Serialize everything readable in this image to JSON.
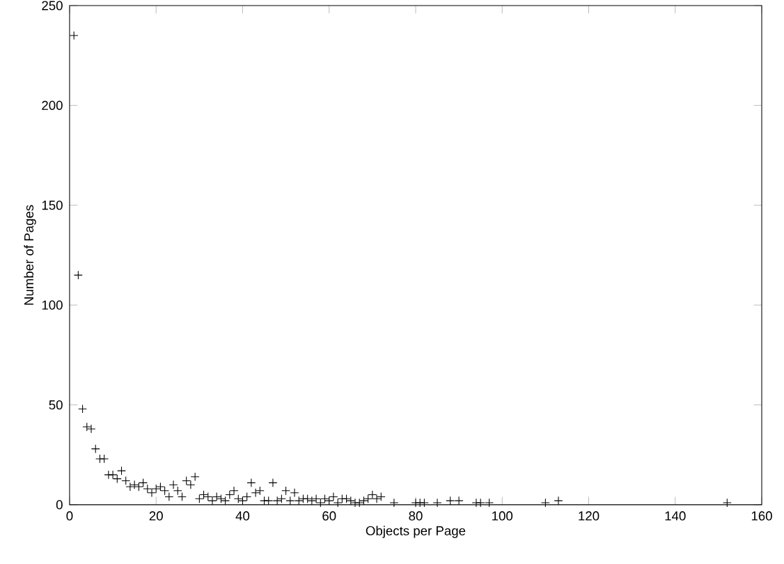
{
  "chart_data": {
    "type": "scatter",
    "xlabel": "Objects per Page",
    "ylabel": "Number of Pages",
    "marker": "cross",
    "color": "#000000",
    "x": [
      1,
      2,
      3,
      4,
      5,
      6,
      7,
      8,
      9,
      10,
      11,
      12,
      13,
      14,
      15,
      16,
      17,
      18,
      19,
      20,
      21,
      22,
      23,
      24,
      25,
      26,
      27,
      28,
      29,
      30,
      31,
      32,
      33,
      34,
      35,
      36,
      37,
      38,
      39,
      40,
      41,
      42,
      43,
      44,
      45,
      46,
      47,
      48,
      49,
      50,
      51,
      52,
      53,
      54,
      55,
      56,
      57,
      58,
      59,
      60,
      61,
      62,
      63,
      64,
      65,
      66,
      67,
      68,
      69,
      70,
      71,
      72,
      75,
      80,
      81,
      82,
      85,
      88,
      90,
      94,
      95,
      97,
      110,
      113,
      152
    ],
    "values": [
      235,
      115,
      48,
      39,
      38,
      28,
      23,
      23,
      15,
      15,
      13,
      17,
      12,
      9,
      10,
      9,
      11,
      8,
      6,
      8,
      9,
      7,
      4,
      10,
      7,
      4,
      12,
      10,
      14,
      3,
      5,
      4,
      2,
      4,
      3,
      2,
      5,
      7,
      3,
      2,
      4,
      11,
      6,
      7,
      2,
      2,
      11,
      2,
      3,
      7,
      2,
      6,
      2,
      3,
      3,
      2,
      3,
      1,
      3,
      2,
      4,
      1,
      3,
      3,
      2,
      1,
      1,
      2,
      3,
      5,
      3,
      4,
      1,
      1,
      1,
      1,
      1,
      2,
      2,
      1,
      1,
      1,
      1,
      2,
      1
    ],
    "xlim": [
      0,
      160
    ],
    "xticks": [
      0,
      20,
      40,
      60,
      80,
      100,
      120,
      140,
      160
    ],
    "ylim": [
      0,
      250
    ],
    "yticks": [
      0,
      50,
      100,
      150,
      200,
      250
    ]
  }
}
